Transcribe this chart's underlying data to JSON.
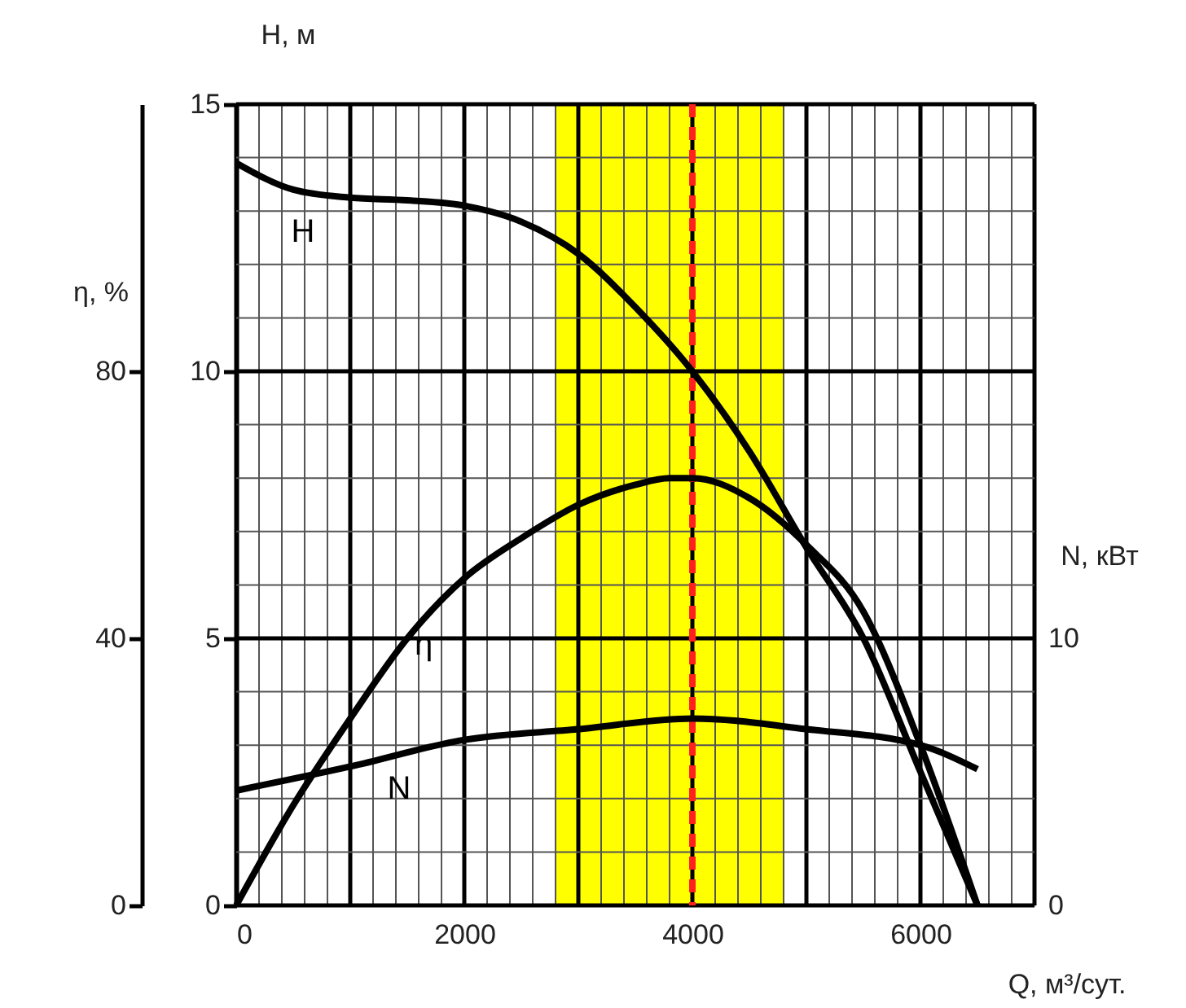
{
  "chart_data": {
    "type": "line",
    "xlabel": "Q, м³/сут.",
    "ylabel": "H, м",
    "y2label": "η, %",
    "y3label": "N, кВт",
    "xlim": [
      0,
      7000
    ],
    "xticks": [
      0,
      2000,
      4000,
      6000
    ],
    "ylim": [
      0,
      15
    ],
    "yticks": [
      0,
      5,
      10,
      15
    ],
    "y2lim": [
      0,
      120
    ],
    "y2ticks": [
      0,
      40,
      80
    ],
    "y3lim": [
      0,
      30
    ],
    "y3ticks": [
      0,
      10
    ],
    "grid": true,
    "legend": false,
    "marker": "none",
    "line_style": "solid",
    "series": [
      {
        "name": "H",
        "color": "#000000",
        "x": [
          0,
          500,
          1000,
          1500,
          2000,
          2500,
          3000,
          3500,
          4000,
          4500,
          5000,
          5500,
          6000,
          6500
        ],
        "values": [
          13.9,
          13.4,
          13.25,
          13.2,
          13.1,
          12.8,
          12.2,
          11.2,
          10.0,
          8.5,
          6.7,
          5.0,
          2.5,
          0
        ]
      },
      {
        "name": "η",
        "color": "#000000",
        "axis": "y2",
        "x": [
          0,
          500,
          1000,
          1500,
          2000,
          2500,
          3000,
          3500,
          3800,
          4000,
          4500,
          5000,
          5500,
          6000,
          6500
        ],
        "values": [
          0,
          15,
          28,
          40,
          49,
          55,
          60,
          63,
          64,
          64,
          61,
          54,
          44,
          24,
          0
        ]
      },
      {
        "name": "N",
        "color": "#000000",
        "axis": "y3",
        "x": [
          0,
          1000,
          2000,
          3000,
          4000,
          5000,
          6000,
          6500
        ],
        "values": [
          4.3,
          5.2,
          6.2,
          6.6,
          7.0,
          6.6,
          6.0,
          5.1
        ]
      }
    ],
    "bands": [
      {
        "axis": "x",
        "from": 2800,
        "to": 4800,
        "color": "#ffff00"
      }
    ],
    "ref_lines": [
      {
        "axis": "x",
        "value": 4000,
        "color": "#000000",
        "line_style": "solid"
      },
      {
        "axis": "x",
        "value": 4000,
        "color": "#ff2020",
        "line_style": "dashed"
      }
    ]
  }
}
